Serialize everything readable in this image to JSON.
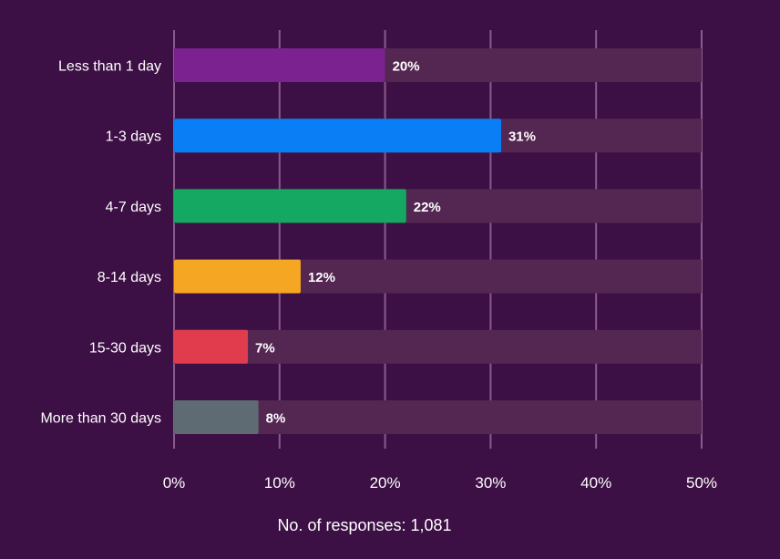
{
  "chart_data": {
    "type": "bar",
    "orientation": "horizontal",
    "categories": [
      "Less than 1 day",
      "1-3 days",
      "4-7 days",
      "8-14 days",
      "15-30 days",
      "More than 30 days"
    ],
    "values": [
      20,
      31,
      22,
      12,
      7,
      8
    ],
    "value_labels": [
      "20%",
      "31%",
      "22%",
      "12%",
      "7%",
      "8%"
    ],
    "colors": [
      "#7b2190",
      "#0a7ff5",
      "#14a862",
      "#f5a623",
      "#e03c4e",
      "#5f6b73"
    ],
    "xlim": [
      0,
      50
    ],
    "x_ticks": [
      0,
      10,
      20,
      30,
      40,
      50
    ],
    "x_tick_labels": [
      "0%",
      "10%",
      "20%",
      "30%",
      "40%",
      "50%"
    ],
    "grid": true,
    "caption": "No. of responses: 1,081"
  },
  "colors": {
    "background": "#3d1045",
    "track": "#532752",
    "gridline": "#8a5a8c",
    "text": "#ffffff"
  }
}
